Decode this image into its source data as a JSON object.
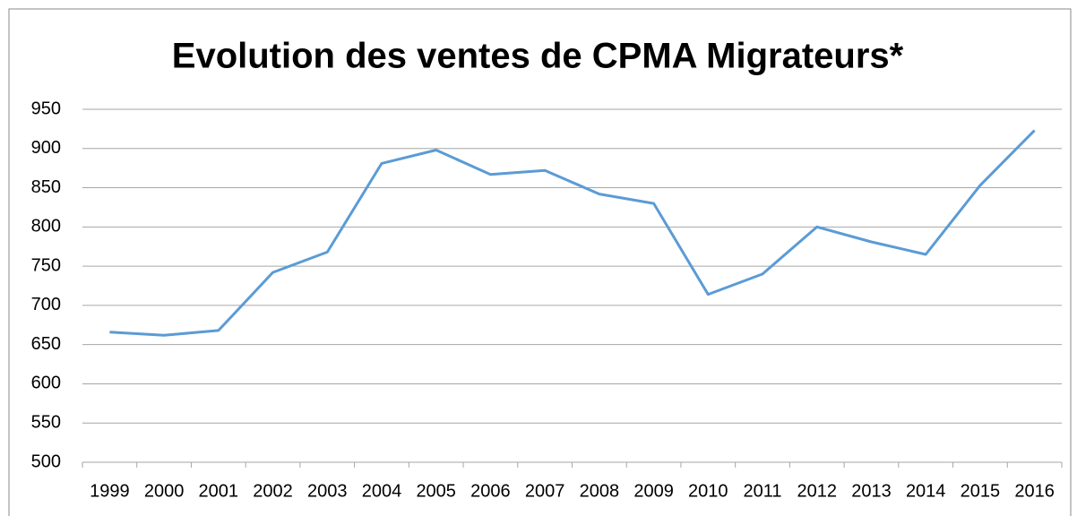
{
  "chart_data": {
    "type": "line",
    "title": "Evolution des ventes de CPMA Migrateurs*",
    "categories": [
      "1999",
      "2000",
      "2001",
      "2002",
      "2003",
      "2004",
      "2005",
      "2006",
      "2007",
      "2008",
      "2009",
      "2010",
      "2011",
      "2012",
      "2013",
      "2014",
      "2015",
      "2016"
    ],
    "values": [
      666,
      662,
      668,
      742,
      768,
      881,
      898,
      867,
      872,
      842,
      830,
      714,
      740,
      800,
      781,
      765,
      853,
      923
    ],
    "color": "#5b9bd5",
    "ylim": [
      500,
      950
    ],
    "yticks": [
      500,
      550,
      600,
      650,
      700,
      750,
      800,
      850,
      900,
      950
    ],
    "grid": true
  }
}
